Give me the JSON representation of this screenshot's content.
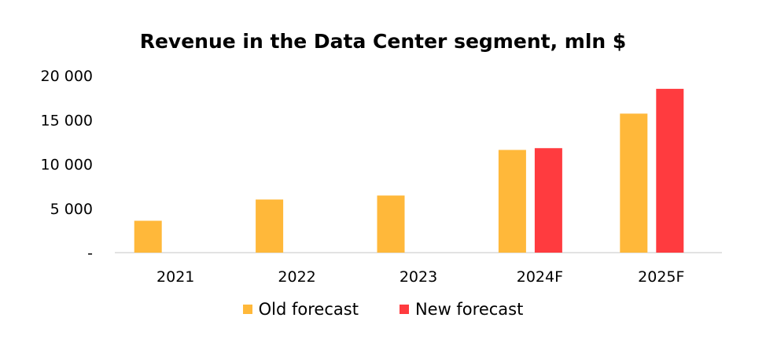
{
  "chart_data": {
    "type": "bar",
    "title": "Revenue in the Data Center segment, mln $",
    "categories": [
      "2021",
      "2022",
      "2023",
      "2024F",
      "2025F"
    ],
    "series": [
      {
        "name": "Old forecast",
        "color": "#FFB83A",
        "values": [
          3600,
          6000,
          6450,
          11600,
          15700
        ]
      },
      {
        "name": "New forecast",
        "color": "#FF3B3F",
        "values": [
          null,
          null,
          null,
          11800,
          18500
        ]
      }
    ],
    "ylim": [
      0,
      20000
    ],
    "yticks": [
      0,
      5000,
      10000,
      15000,
      20000
    ],
    "ytick_labels": [
      "-",
      "5 000",
      "10 000",
      "15 000",
      "20 000"
    ],
    "grid": false,
    "legend_position": "bottom"
  }
}
